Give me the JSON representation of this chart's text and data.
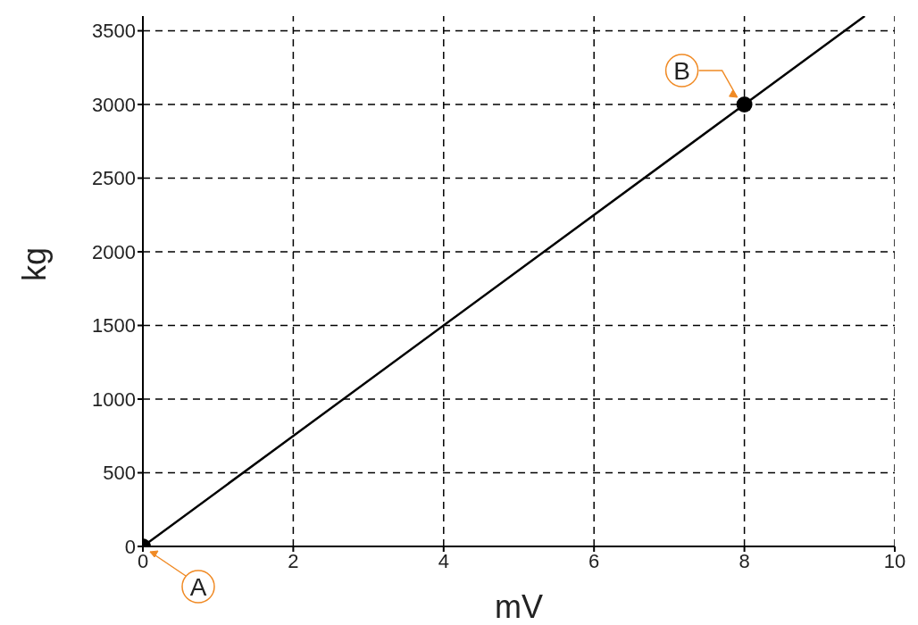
{
  "chart_data": {
    "type": "line",
    "xlabel": "mV",
    "ylabel": "kg",
    "xlim": [
      0,
      10
    ],
    "xticks": [
      0,
      2,
      4,
      6,
      8,
      10
    ],
    "ylim": [
      0,
      3600
    ],
    "yticks": [
      0,
      500,
      1000,
      1500,
      2000,
      2500,
      3000,
      3500
    ],
    "grid": true,
    "line_style": "solid",
    "marker": "none",
    "series": [
      {
        "type": "line",
        "color": "#000000",
        "x": [
          0,
          8,
          9.6
        ],
        "values": [
          0,
          3000,
          3600
        ]
      },
      {
        "type": "scatter",
        "color": "#000000",
        "marker": "circle",
        "x": [
          0,
          8
        ],
        "values": [
          0,
          3000
        ]
      }
    ],
    "annotations": [
      {
        "text": "A",
        "x": 0,
        "y": 0
      },
      {
        "text": "B",
        "x": 8,
        "y": 3000
      }
    ]
  }
}
